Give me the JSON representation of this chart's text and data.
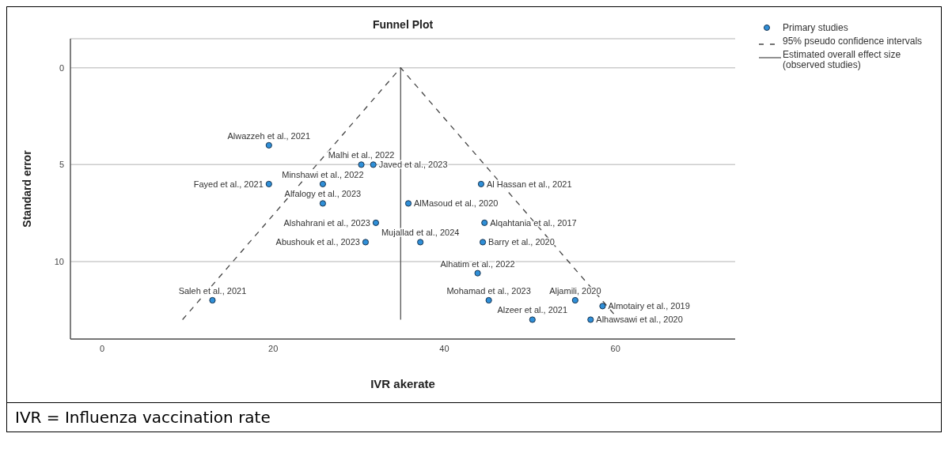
{
  "chart_data": {
    "type": "scatter",
    "title": "Funnel Plot",
    "xlabel": "IVR akerate",
    "ylabel": "Standard error",
    "annotations": [
      "IVR = Influenza vaccination rate",
      {
        "text": "Alwazzeh et al., 2021",
        "x": 19.5,
        "y": 4.0
      },
      {
        "text": "Malhi et al., 2022",
        "x": 30.3,
        "y": 5.0
      },
      {
        "text": "Javed et al., 2023",
        "x": 31.7,
        "y": 5.0
      },
      {
        "text": "Minshawi et al., 2022",
        "x": 25.8,
        "y": 6.0
      },
      {
        "text": "Fayed et al., 2021",
        "x": 19.5,
        "y": 6.0
      },
      {
        "text": "Al Hassan et al., 2021",
        "x": 44.3,
        "y": 6.0
      },
      {
        "text": "Alfalogy et al., 2023",
        "x": 25.8,
        "y": 7.0
      },
      {
        "text": "AlMasoud et al., 2020",
        "x": 35.8,
        "y": 7.0
      },
      {
        "text": "Alqahtania et al., 2017",
        "x": 44.7,
        "y": 8.0
      },
      {
        "text": "Alshahrani et al., 2023",
        "x": 32.0,
        "y": 8.0
      },
      {
        "text": "Mujallad et al., 2024",
        "x": 37.2,
        "y": 9.0
      },
      {
        "text": "Abushouk et al., 2023",
        "x": 30.8,
        "y": 9.0
      },
      {
        "text": "Barry et al., 2020",
        "x": 44.5,
        "y": 9.0
      },
      {
        "text": "Alhatim et al., 2022",
        "x": 43.9,
        "y": 10.6
      },
      {
        "text": "Saleh et al., 2021",
        "x": 12.9,
        "y": 12.0
      },
      {
        "text": "Mohamad et al., 2023",
        "x": 45.2,
        "y": 12.0
      },
      {
        "text": "Aljamili, 2020",
        "x": 55.3,
        "y": 12.0
      },
      {
        "text": "Almotairy et al., 2019",
        "x": 58.5,
        "y": 12.3
      },
      {
        "text": "Alzeer et al., 2021",
        "x": 50.3,
        "y": 13.0
      },
      {
        "text": "Alhawsawi et al., 2020",
        "x": 57.1,
        "y": 13.0
      }
    ],
    "xlim": [
      -3.7,
      74
    ],
    "xticks": [
      0,
      20,
      40,
      60
    ],
    "ylim": [
      14,
      -1.5
    ],
    "yticks": [
      0,
      5,
      10
    ],
    "grid": "y",
    "legend": "top right",
    "series": [
      {
        "name": "Primary studies",
        "color": "#2f8fd8",
        "marker": "circle",
        "x": [
          19.5,
          30.3,
          31.7,
          25.8,
          19.5,
          44.3,
          25.8,
          35.8,
          44.7,
          32.0,
          37.2,
          30.8,
          44.5,
          43.9,
          12.9,
          45.2,
          55.3,
          58.5,
          50.3,
          57.1
        ],
        "values": [
          4.0,
          5.0,
          5.0,
          6.0,
          6.0,
          6.0,
          7.0,
          7.0,
          8.0,
          8.0,
          9.0,
          9.0,
          9.0,
          10.6,
          12.0,
          12.0,
          12.0,
          12.3,
          13.0,
          13.0
        ]
      },
      {
        "type": "line",
        "name": "95% pseudo confidence intervals",
        "color": "#444444",
        "line_style": "dashed",
        "x": [
          9.4,
          34.9,
          60.4
        ],
        "values": [
          13,
          0,
          13
        ]
      },
      {
        "type": "line",
        "name": "Estimated overall effect size (observed studies)",
        "color": "#555555",
        "line_style": "solid",
        "x": [
          34.9,
          34.9
        ],
        "values": [
          13,
          0
        ]
      }
    ]
  }
}
